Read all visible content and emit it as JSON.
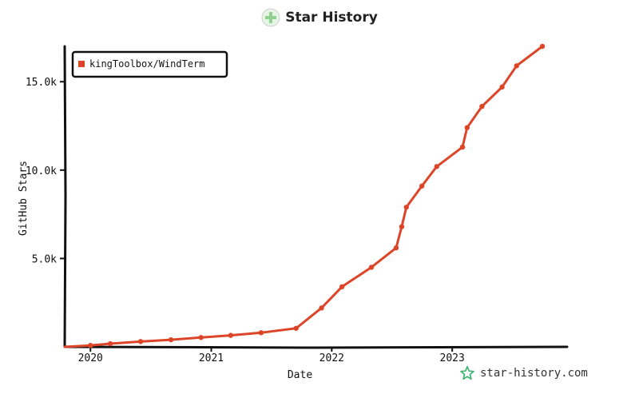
{
  "title": "Star History",
  "brand": {
    "text": "star-history.com"
  },
  "icons": {
    "title_logo": "star-history-logo-icon",
    "brand_logo": "star-outline-icon"
  },
  "colors": {
    "series": "#dd4528",
    "axis": "#111111",
    "brand_icon": "#3cb371",
    "logo": "#8fd18f"
  },
  "chart_data": {
    "type": "line",
    "title": "Star History",
    "xlabel": "Date",
    "ylabel": "GitHub Stars",
    "xlim": [
      "2019-10-15",
      "2023-12-15"
    ],
    "ylim": [
      0,
      17000
    ],
    "x_ticks": [
      "2020",
      "2021",
      "2022",
      "2023"
    ],
    "y_ticks": [
      "5.0k",
      "10.0k",
      "15.0k"
    ],
    "legend": {
      "position": "top-left"
    },
    "grid": false,
    "series": [
      {
        "name": "kingToolbox/WindTerm",
        "color": "#dd4528",
        "points": [
          [
            "2019-10-15",
            0
          ],
          [
            "2020-01-01",
            80
          ],
          [
            "2020-03-01",
            180
          ],
          [
            "2020-06-01",
            300
          ],
          [
            "2020-09-01",
            400
          ],
          [
            "2020-12-01",
            530
          ],
          [
            "2021-03-01",
            650
          ],
          [
            "2021-06-01",
            800
          ],
          [
            "2021-09-15",
            1050
          ],
          [
            "2021-12-01",
            2200
          ],
          [
            "2022-02-01",
            3400
          ],
          [
            "2022-05-01",
            4500
          ],
          [
            "2022-07-15",
            5600
          ],
          [
            "2022-08-01",
            6800
          ],
          [
            "2022-08-15",
            7900
          ],
          [
            "2022-10-01",
            9100
          ],
          [
            "2022-11-15",
            10200
          ],
          [
            "2023-02-01",
            11300
          ],
          [
            "2023-02-15",
            12400
          ],
          [
            "2023-04-01",
            13600
          ],
          [
            "2023-06-01",
            14700
          ],
          [
            "2023-07-15",
            15900
          ],
          [
            "2023-10-01",
            17000
          ]
        ]
      }
    ]
  }
}
